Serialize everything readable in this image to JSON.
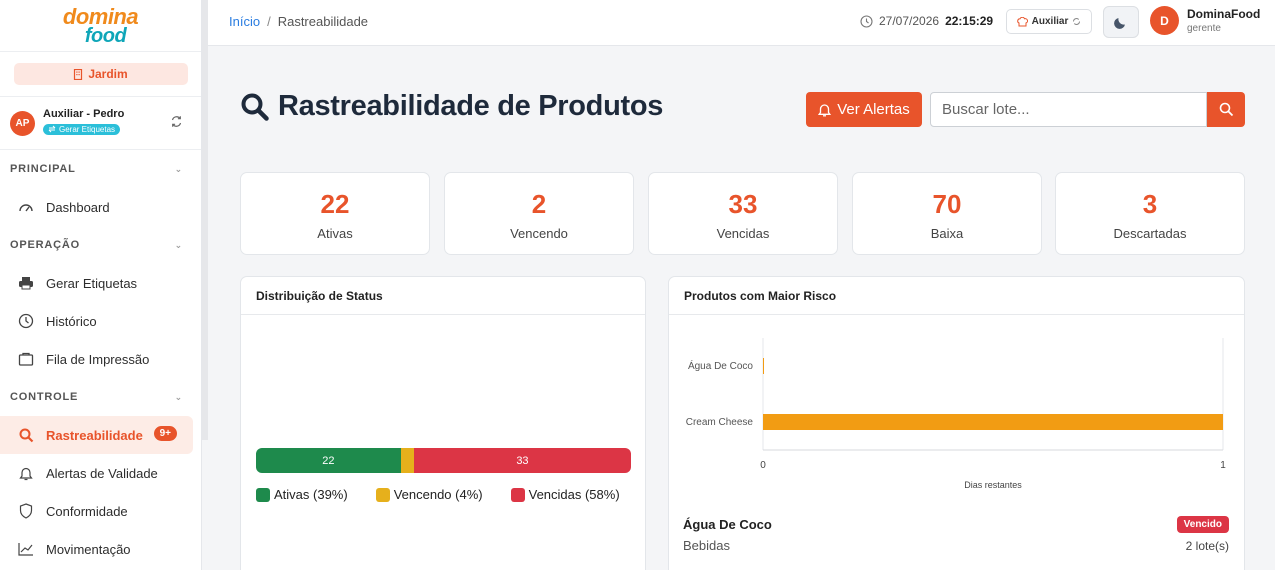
{
  "brand": {
    "logo_top": "domina",
    "logo_bottom": "food"
  },
  "sidebar": {
    "unit": "Jardim",
    "user": {
      "initials": "AP",
      "name": "Auxiliar - Pedro",
      "badge": "Gerar Etiquetas"
    },
    "sections": [
      {
        "title": "PRINCIPAL",
        "items": [
          {
            "label": "Dashboard",
            "icon": "gauge-icon"
          }
        ]
      },
      {
        "title": "OPERAÇÃO",
        "items": [
          {
            "label": "Gerar Etiquetas",
            "icon": "printer-icon"
          },
          {
            "label": "Histórico",
            "icon": "clock-icon"
          },
          {
            "label": "Fila de Impressão",
            "icon": "tray-icon"
          }
        ]
      },
      {
        "title": "CONTROLE",
        "items": [
          {
            "label": "Rastreabilidade",
            "icon": "search-icon",
            "badge": "9+",
            "active": true
          },
          {
            "label": "Alertas de Validade",
            "icon": "bell-icon"
          },
          {
            "label": "Conformidade",
            "icon": "shield-icon"
          },
          {
            "label": "Movimentação",
            "icon": "chart-icon"
          }
        ]
      }
    ]
  },
  "topbar": {
    "breadcrumb": {
      "home": "Início",
      "separator": "/",
      "current": "Rastreabilidade"
    },
    "date": "27/07/2026",
    "time": "22:15:29",
    "role": "Auxiliar",
    "profile": {
      "initial": "D",
      "name": "DominaFood",
      "role": "gerente"
    }
  },
  "header": {
    "title": "Rastreabilidade de Produtos",
    "alerts_button": "Ver Alertas",
    "search_placeholder": "Buscar lote..."
  },
  "stats": [
    {
      "value": "22",
      "label": "Ativas"
    },
    {
      "value": "2",
      "label": "Vencendo"
    },
    {
      "value": "33",
      "label": "Vencidas"
    },
    {
      "value": "70",
      "label": "Baixa"
    },
    {
      "value": "3",
      "label": "Descartadas"
    }
  ],
  "status_panel": {
    "title": "Distribuição de Status",
    "segments": [
      {
        "label": "22",
        "value": 22,
        "color": "#1e8a4c"
      },
      {
        "label": "",
        "value": 2,
        "color": "#e6b01c"
      },
      {
        "label": "33",
        "value": 33,
        "color": "#dc3545"
      }
    ],
    "legend": [
      {
        "label": "Ativas (39%)",
        "color": "#1e8a4c"
      },
      {
        "label": "Vencendo (4%)",
        "color": "#e6b01c"
      },
      {
        "label": "Vencidas (58%)",
        "color": "#dc3545"
      }
    ]
  },
  "risk_panel": {
    "title": "Produtos com Maior Risco",
    "items": [
      {
        "name": "Água De Coco",
        "category": "Bebidas",
        "status": "Vencido",
        "lots": "2 lote(s)"
      }
    ]
  },
  "chart_data": {
    "type": "bar",
    "orientation": "horizontal",
    "categories": [
      "Água De Coco",
      "Cream Cheese"
    ],
    "values": [
      0,
      1
    ],
    "xlabel": "Dias restantes",
    "ylabel": "",
    "xlim": [
      0,
      1
    ],
    "x_ticks": [
      "0",
      "1"
    ],
    "bar_color": "#f29c13",
    "grid": true
  }
}
